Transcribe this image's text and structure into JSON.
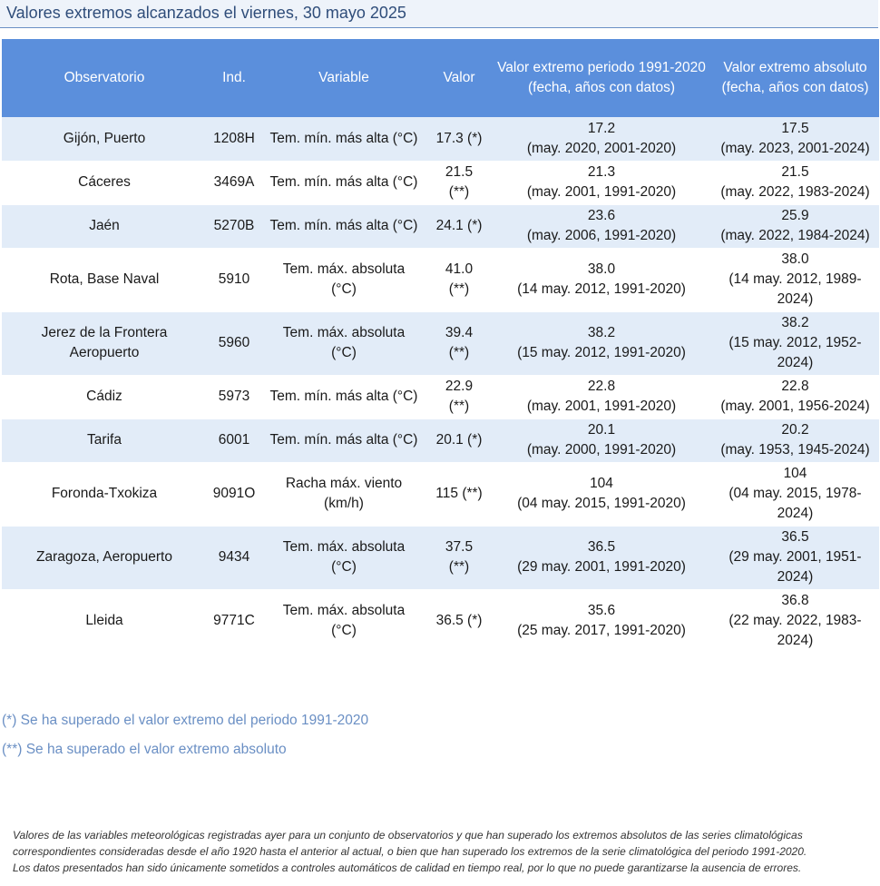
{
  "title": "Valores extremos alcanzados el viernes, 30 mayo 2025",
  "table": {
    "headers": [
      "Observatorio",
      "Ind.",
      "Variable",
      "Valor",
      "Valor extremo periodo 1991-2020\n(fecha, años con datos)",
      "Valor extremo absoluto\n(fecha, años con datos)"
    ],
    "rows": [
      {
        "observatorio": "Gijón, Puerto",
        "ind": "1208H",
        "variable": "Tem. mín. más alta (°C)",
        "valor": "17.3 (*)",
        "periodo": "17.2\n(may. 2020, 2001-2020)",
        "absoluto": "17.5\n(may. 2023, 2001-2024)"
      },
      {
        "observatorio": "Cáceres",
        "ind": "3469A",
        "variable": "Tem. mín. más alta (°C)",
        "valor": "21.5\n(**)",
        "periodo": "21.3\n(may. 2001, 1991-2020)",
        "absoluto": "21.5\n(may. 2022, 1983-2024)"
      },
      {
        "observatorio": "Jaén",
        "ind": "5270B",
        "variable": "Tem. mín. más alta (°C)",
        "valor": "24.1 (*)",
        "periodo": "23.6\n(may. 2006, 1991-2020)",
        "absoluto": "25.9\n(may. 2022, 1984-2024)"
      },
      {
        "observatorio": "Rota, Base Naval",
        "ind": "5910",
        "variable": "Tem. máx. absoluta\n(°C)",
        "valor": "41.0\n(**)",
        "periodo": "38.0\n(14 may. 2012, 1991-2020)",
        "absoluto": "38.0\n(14 may. 2012, 1989-\n2024)"
      },
      {
        "observatorio": "Jerez de la Frontera\nAeropuerto",
        "ind": "5960",
        "variable": "Tem. máx. absoluta\n(°C)",
        "valor": "39.4\n(**)",
        "periodo": "38.2\n(15 may. 2012, 1991-2020)",
        "absoluto": "38.2\n(15 may. 2012, 1952-\n2024)"
      },
      {
        "observatorio": "Cádiz",
        "ind": "5973",
        "variable": "Tem. mín. más alta (°C)",
        "valor": "22.9\n(**)",
        "periodo": "22.8\n(may. 2001, 1991-2020)",
        "absoluto": "22.8\n(may. 2001, 1956-2024)"
      },
      {
        "observatorio": "Tarifa",
        "ind": "6001",
        "variable": "Tem. mín. más alta (°C)",
        "valor": "20.1 (*)",
        "periodo": "20.1\n(may. 2000, 1991-2020)",
        "absoluto": "20.2\n(may. 1953, 1945-2024)"
      },
      {
        "observatorio": "Foronda-Txokiza",
        "ind": "9091O",
        "variable": "Racha máx. viento\n(km/h)",
        "valor": "115 (**)",
        "periodo": "104\n(04 may. 2015, 1991-2020)",
        "absoluto": "104\n(04 may. 2015, 1978-\n2024)"
      },
      {
        "observatorio": "Zaragoza, Aeropuerto",
        "ind": "9434",
        "variable": "Tem. máx. absoluta\n(°C)",
        "valor": "37.5\n(**)",
        "periodo": "36.5\n(29 may. 2001, 1991-2020)",
        "absoluto": "36.5\n(29 may. 2001, 1951-\n2024)"
      },
      {
        "observatorio": "Lleida",
        "ind": "9771C",
        "variable": "Tem. máx. absoluta\n(°C)",
        "valor": "36.5 (*)",
        "periodo": "35.6\n(25 may. 2017, 1991-2020)",
        "absoluto": "36.8\n(22 may. 2022, 1983-\n2024)"
      }
    ]
  },
  "legend": {
    "single": "(*) Se ha superado el valor extremo del periodo 1991-2020",
    "double": "(**) Se ha superado el valor extremo absoluto"
  },
  "footnote": {
    "line1": "Valores de las variables meteorológicas registradas ayer para un conjunto de observatorios y que han superado los extremos absolutos de las series climatológicas correspondientes consideradas desde el año 1920 hasta el anterior al actual, o bien que han superado los extremos de la serie climatológica del periodo 1991-2020.",
    "line2": "Los datos presentados han sido únicamente sometidos a controles automáticos de calidad en tiempo real, por lo que no puede garantizarse la ausencia de errores."
  }
}
